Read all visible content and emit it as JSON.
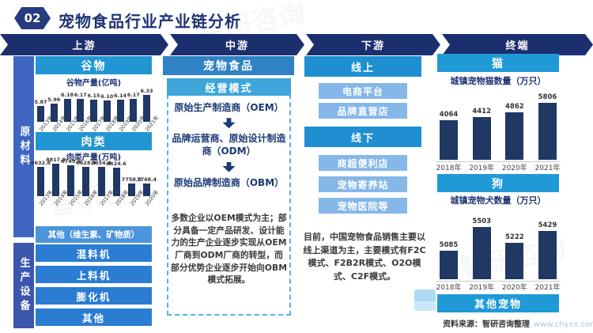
{
  "header": {
    "badge": "02",
    "title": "宠物食品行业产业链分析"
  },
  "chain_stages": [
    "上游",
    "中游",
    "下游",
    "终端"
  ],
  "upstream": {
    "side_label": "原材料",
    "grain_header": "谷物",
    "meat_header": "肉类",
    "other_materials": "其他（维生素、矿物质）",
    "equipment_side_label": "生产设备",
    "equipment_items": [
      "混料机",
      "上料机",
      "膨化机",
      "其他"
    ]
  },
  "midstream": {
    "header": "宠物食品",
    "model_header": "经营模式",
    "flow_steps": [
      "原始生产制造商（OEM）",
      "品牌运营商、原始设计制造商（ODM）",
      "原始品牌制造商（OBM）"
    ],
    "note": "多数企业以OEM模式为主；部分具备一定产品研发、设计能力的生产企业逐步实现从OEM厂商到ODM厂商的转型，而部分优势企业逐步开始向OBM模式拓展。"
  },
  "downstream": {
    "online_header": "线上",
    "online_items": [
      "电商平台",
      "品牌直营店"
    ],
    "offline_header": "线下",
    "offline_items": [
      "商超便利店",
      "宠物寄养站",
      "宠物医院等"
    ],
    "note": "目前，中国宠物食品销售主要以线上渠道为主，主要模式有F2C模式、F2B2R模式、O2O模式、C2F模式。"
  },
  "terminal": {
    "cat_header": "猫",
    "dog_header": "狗",
    "other_header": "其他宠物"
  },
  "source": {
    "label": "资料来源：智研咨询整理",
    "site": "www.chyxx.com"
  },
  "watermark_text": "智研咨询",
  "colors": {
    "navy": "#1e3373",
    "band_navy": "#1b2f6f",
    "bar_fill": "#1f3864",
    "section_header_blue": "#2196d2",
    "mid_header_blue": "#2e82c5",
    "model_header_blue": "#3ea6d9",
    "raw_side_blue": "#3e66c1",
    "equip_side_blue": "#3c55ad",
    "equip_box_blue": "#2b7cd3",
    "other_box_blue": "#4d95da",
    "channel_header_blue": "#1f8fd2",
    "channel_item_blue": "#85b7e8",
    "terminal_header_blue": "#1f9ad6",
    "dashed_border_blue": "#4db5e8",
    "source_site_blue": "#b3c6de"
  },
  "chart_data": [
    {
      "type": "bar",
      "title": "谷物产量(亿吨)",
      "categories": [
        "2013年",
        "2014年",
        "2015年",
        "2016年",
        "2017年",
        "2018年",
        "2019年",
        "2020年",
        "2021年"
      ],
      "values": [
        5.87,
        5.96,
        6.18,
        6.17,
        6.15,
        6.1,
        6.14,
        6.17,
        6.33
      ],
      "labels": [
        "5.87",
        "5.96",
        "6.18",
        "6.17",
        "6.15",
        "6.10",
        "6.14",
        "6.17",
        "6.33"
      ],
      "bar_color": "#1f3864",
      "grid": false,
      "legend": false,
      "xlabel": "",
      "ylabel": ""
    },
    {
      "type": "bar",
      "title": "肉类产量(万吨)",
      "categories": [
        "2013年",
        "2014年",
        "2015年",
        "2016年",
        "2017年",
        "2018年",
        "2019年",
        "2020年"
      ],
      "values": [
        8632.8,
        8817.9,
        8749.5,
        8628.3,
        8654.4,
        8624.6,
        7758.8,
        7748.4
      ],
      "labels": [
        "8632.8",
        "8817.9",
        "8749.5",
        "8628.3",
        "8654.4",
        "8624.6",
        "7758.8",
        "7748.4"
      ],
      "bar_color": "#1f3864",
      "grid": false,
      "legend": false,
      "xlabel": "",
      "ylabel": ""
    },
    {
      "type": "bar",
      "title": "城镇宠物猫数量（万只）",
      "categories": [
        "2018年",
        "2019年",
        "2020年",
        "2021年"
      ],
      "values": [
        4064,
        4412,
        4862,
        5806
      ],
      "labels": [
        "4064",
        "4412",
        "4862",
        "5806"
      ],
      "bar_color": "#1f3864",
      "grid": false,
      "legend": false,
      "xlabel": "",
      "ylabel": ""
    },
    {
      "type": "bar",
      "title": "城镇宠物犬数量（万只）",
      "categories": [
        "2018年",
        "2019年",
        "2020年",
        "2021年"
      ],
      "values": [
        5085,
        5503,
        5222,
        5429
      ],
      "labels": [
        "5085",
        "5503",
        "5222",
        "5429"
      ],
      "bar_color": "#1f3864",
      "grid": false,
      "legend": false,
      "xlabel": "",
      "ylabel": ""
    }
  ]
}
